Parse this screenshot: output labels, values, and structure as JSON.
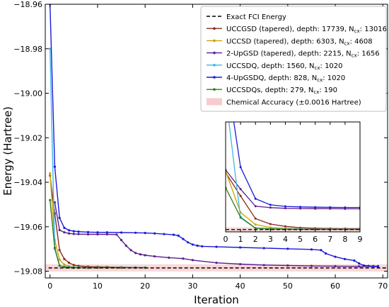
{
  "chart_data": [
    {
      "type": "line",
      "title": "",
      "xlabel": "Iteration",
      "ylabel": "Energy (Hartree)",
      "xlim": [
        -1,
        71
      ],
      "ylim": [
        -19.083,
        -18.96
      ],
      "xticks": [
        0,
        10,
        20,
        30,
        40,
        50,
        60,
        70
      ],
      "yticks": [
        -18.96,
        -18.98,
        -19.0,
        -19.02,
        -19.04,
        -19.06,
        -19.08
      ],
      "ytick_labels": [
        "−18.96",
        "−18.98",
        "−19.00",
        "−19.02",
        "−19.04",
        "−19.06",
        "−19.08"
      ],
      "grid": false,
      "legend_position": "top-right",
      "reference": {
        "name": "Exact FCI Energy",
        "y": -19.0785,
        "color": "#000000"
      },
      "band": {
        "name": "Chemical Accuracy (±0.0016 Hartree)",
        "center": -19.0785,
        "half_width": 0.0016,
        "color": "#f4b6b8"
      },
      "series": [
        {
          "name": "UCCGSD (tapered), depth: 17739, N",
          "sub": "cx",
          "name_tail": ": 13016",
          "color": "#8b2b1a",
          "x": [
            0,
            1,
            2,
            3,
            4,
            5,
            6,
            8,
            10,
            12,
            15,
            18
          ],
          "y": [
            -19.037,
            -19.054,
            -19.0705,
            -19.0745,
            -19.0762,
            -19.0772,
            -19.0776,
            -19.0779,
            -19.078,
            -19.0781,
            -19.0782,
            -19.0783
          ]
        },
        {
          "name": "UCCSD (tapered), depth: 6303, N",
          "sub": "cx",
          "name_tail": ": 4608",
          "color": "#c9a400",
          "x": [
            0,
            1,
            2,
            3,
            4,
            5,
            6,
            8,
            10,
            12,
            14
          ],
          "y": [
            -19.036,
            -19.066,
            -19.0748,
            -19.077,
            -19.0778,
            -19.0781,
            -19.0783,
            -19.0784,
            -19.0784,
            -19.0784,
            -19.0784
          ]
        },
        {
          "name": "2-UpGSD (tapered), depth: 2215, N",
          "sub": "cx",
          "name_tail": ": 1656",
          "color": "#5b1e8e",
          "x": [
            1,
            2,
            3,
            4,
            5,
            6,
            8,
            10,
            12,
            14,
            15,
            16,
            17,
            18,
            19,
            20,
            22,
            25,
            28,
            30,
            35,
            40,
            45,
            50,
            55,
            60,
            65,
            69
          ],
          "y": [
            -19.049,
            -19.0615,
            -19.0625,
            -19.063,
            -19.0632,
            -19.0633,
            -19.0634,
            -19.0634,
            -19.0634,
            -19.0635,
            -19.066,
            -19.0685,
            -19.0705,
            -19.0718,
            -19.0724,
            -19.0728,
            -19.0733,
            -19.0739,
            -19.0743,
            -19.075,
            -19.0762,
            -19.0768,
            -19.0772,
            -19.0774,
            -19.0776,
            -19.0777,
            -19.0778,
            -19.0779
          ]
        },
        {
          "name": "UCCSDQ, depth: 1560, N",
          "sub": "cx",
          "name_tail": ": 1020",
          "color": "#3fb6e8",
          "x": [
            0,
            1,
            2,
            3,
            4,
            5,
            6,
            8,
            10,
            12,
            15,
            18,
            20
          ],
          "y": [
            -18.98,
            -19.07,
            -19.0775,
            -19.078,
            -19.0781,
            -19.0782,
            -19.0783,
            -19.0783,
            -19.0783,
            -19.0783,
            -19.0783,
            -19.0783,
            -19.0783
          ]
        },
        {
          "name": "4-UpGSDQ, depth: 828, N",
          "sub": "cx",
          "name_tail": ": 1020",
          "color": "#1a1adb",
          "x": [
            0,
            1,
            2,
            3,
            4,
            5,
            6,
            8,
            10,
            12,
            15,
            18,
            20,
            22,
            24,
            26,
            27,
            28,
            29,
            30,
            31,
            32,
            35,
            40,
            45,
            50,
            55,
            57,
            58,
            60,
            62,
            64,
            65,
            66,
            67,
            68,
            69
          ],
          "y": [
            -18.96,
            -19.033,
            -19.056,
            -19.0605,
            -19.0616,
            -19.062,
            -19.0622,
            -19.0624,
            -19.0625,
            -19.0625,
            -19.0626,
            -19.0627,
            -19.0628,
            -19.063,
            -19.0633,
            -19.0636,
            -19.064,
            -19.0655,
            -19.067,
            -19.068,
            -19.0685,
            -19.0688,
            -19.069,
            -19.0693,
            -19.0696,
            -19.0699,
            -19.0702,
            -19.0705,
            -19.072,
            -19.0735,
            -19.0745,
            -19.0752,
            -19.0765,
            -19.0774,
            -19.0776,
            -19.0777,
            -19.0777
          ]
        },
        {
          "name": "UCCSDQs, depth: 279, N",
          "sub": "cx",
          "name_tail": ": 190",
          "color": "#2e7d1e",
          "x": [
            0,
            1,
            2,
            3,
            4,
            5,
            6,
            8,
            10,
            12,
            15,
            18,
            20
          ],
          "y": [
            -19.048,
            -19.0695,
            -19.0775,
            -19.0781,
            -19.0783,
            -19.0784,
            -19.0784,
            -19.0784,
            -19.0784,
            -19.0784,
            -19.0784,
            -19.0784,
            -19.0784
          ]
        }
      ]
    },
    {
      "type": "line",
      "role": "inset",
      "xlim": [
        0,
        9
      ],
      "ylim": [
        -19.0802,
        -19.0
      ],
      "xticks": [
        0,
        1,
        2,
        3,
        4,
        5,
        6,
        7,
        8,
        9
      ],
      "series_x": [
        0,
        1,
        2,
        3,
        4,
        5,
        6,
        7,
        8,
        9
      ],
      "series_y": {
        "UCCGSD": [
          -19.037,
          -19.054,
          -19.0705,
          -19.0745,
          -19.0762,
          -19.0772,
          -19.0776,
          -19.0778,
          -19.0779,
          -19.0779
        ],
        "UCCSD": [
          -19.036,
          -19.066,
          -19.0748,
          -19.077,
          -19.0778,
          -19.0781,
          -19.0783,
          -19.0783,
          -19.0784,
          -19.0784
        ],
        "2-UpGSD": [
          -19.035,
          -19.049,
          -19.0615,
          -19.0625,
          -19.063,
          -19.0632,
          -19.0633,
          -19.0633,
          -19.0634,
          -19.0634
        ],
        "UCCSDQ": [
          -18.98,
          -19.07,
          -19.0775,
          -19.078,
          -19.0781,
          -19.0782,
          -19.0783,
          -19.0783,
          -19.0783,
          -19.0783
        ],
        "4-UpGSDQ": [
          -18.96,
          -19.033,
          -19.056,
          -19.0605,
          -19.0616,
          -19.062,
          -19.0622,
          -19.0623,
          -19.0624,
          -19.0624
        ],
        "UCCSDQs": [
          -19.048,
          -19.0695,
          -19.0775,
          -19.0781,
          -19.0783,
          -19.0784,
          -19.0784,
          -19.0784,
          -19.0784,
          -19.0784
        ]
      }
    }
  ]
}
